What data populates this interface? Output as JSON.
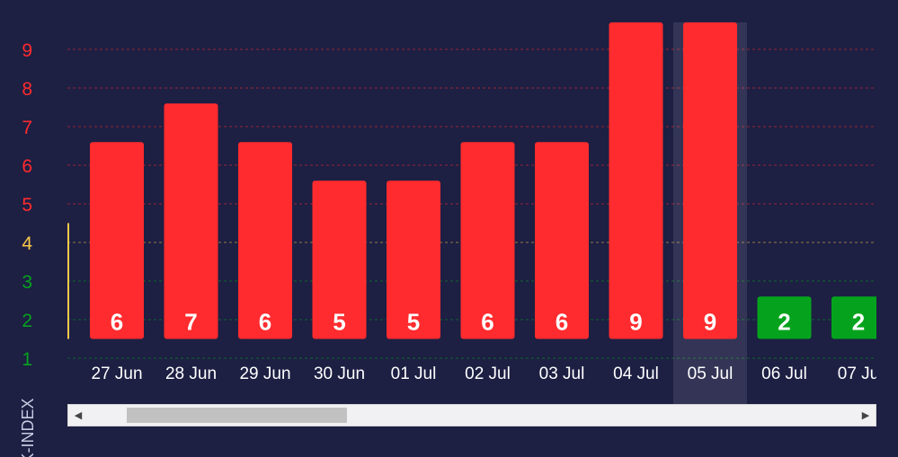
{
  "chart_data": {
    "type": "bar",
    "ylabel": "K-INDEX",
    "ylim": [
      0.5,
      9.7
    ],
    "y_ticks": [
      1,
      2,
      3,
      4,
      5,
      6,
      7,
      8,
      9
    ],
    "x_tick_partial_left": "n",
    "categories": [
      "27 Jun",
      "28 Jun",
      "29 Jun",
      "30 Jun",
      "01 Jul",
      "02 Jul",
      "03 Jul",
      "04 Jul",
      "05 Jul",
      "06 Jul",
      "07 Ju"
    ],
    "values": [
      6,
      7,
      6,
      5,
      5,
      6,
      6,
      9,
      9,
      2,
      2
    ],
    "bar_tops": [
      6.6,
      7.6,
      6.6,
      5.6,
      5.6,
      6.6,
      6.6,
      9.7,
      9.7,
      2.6,
      2.6
    ],
    "highlighted_category": "05 Jul",
    "grid": true,
    "colors": {
      "storm": "#ff2b2e",
      "quiet": "#05a31d",
      "unsettled": "#f7c94b",
      "background": "#1d1f43"
    },
    "y_tick_colors": [
      "#05a31d",
      "#05a31d",
      "#05a31d",
      "#f7c94b",
      "#ff2b2e",
      "#ff2b2e",
      "#ff2b2e",
      "#ff2b2e",
      "#ff2b2e"
    ]
  },
  "scrollbar": {
    "left_arrow": "◀",
    "right_arrow": "▶"
  }
}
